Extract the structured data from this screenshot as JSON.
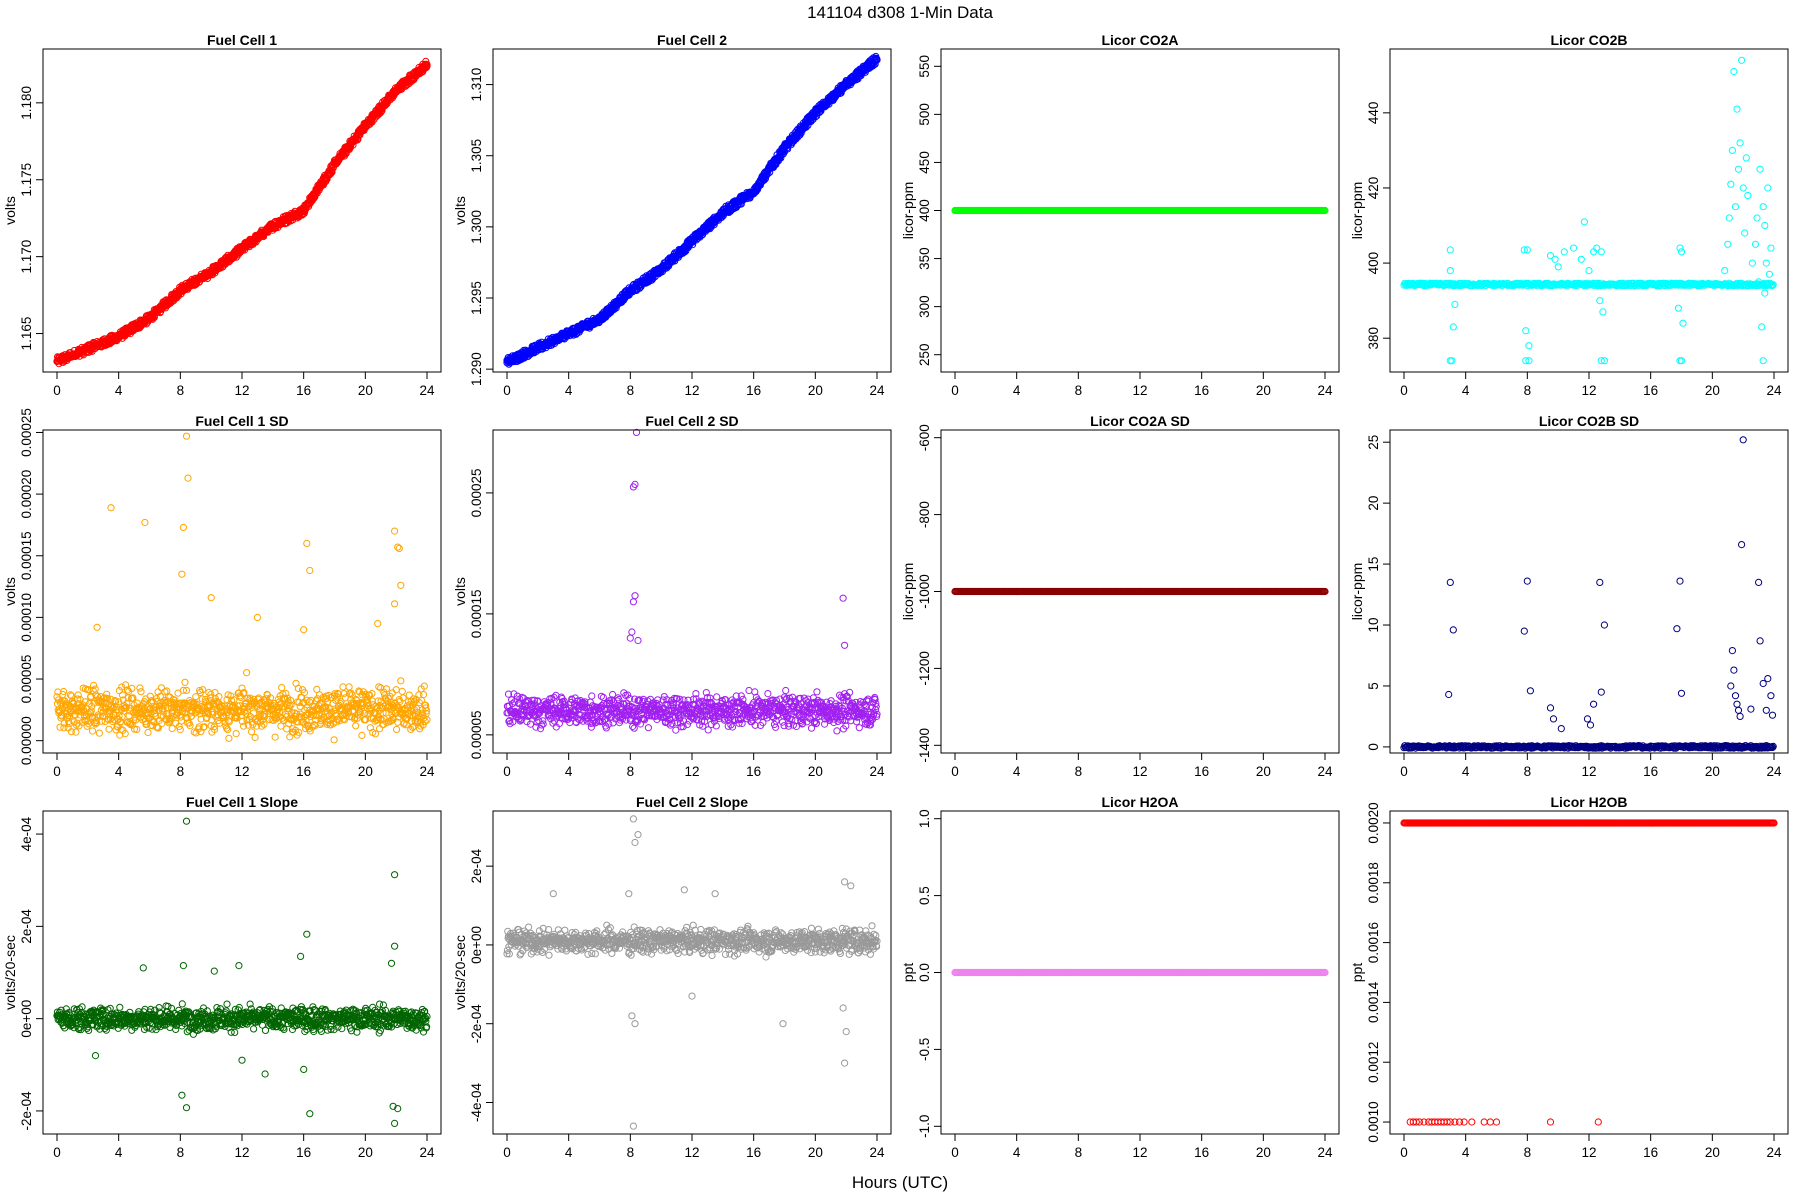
{
  "figure": {
    "title": "141104   d308   1-Min Data",
    "xlabel": "Hours (UTC)"
  },
  "chart_data": [
    {
      "type": "scatter",
      "title": "Fuel Cell 1",
      "ylabel": "volts",
      "color": "#ff0000",
      "xlim": [
        0,
        24
      ],
      "xticks": [
        "0",
        "4",
        "8",
        "12",
        "16",
        "20",
        "24"
      ],
      "ylim": [
        1.1625,
        1.1835
      ],
      "yticks": [
        [
          "1.165",
          1.165
        ],
        [
          "1.170",
          1.17
        ],
        [
          "1.175",
          1.175
        ],
        [
          "1.180",
          1.18
        ]
      ],
      "trend": [
        [
          0,
          1.1632
        ],
        [
          2,
          1.164
        ],
        [
          4,
          1.1648
        ],
        [
          6,
          1.166
        ],
        [
          8,
          1.1678
        ],
        [
          10,
          1.169
        ],
        [
          12,
          1.1705
        ],
        [
          14,
          1.172
        ],
        [
          16,
          1.173
        ],
        [
          18,
          1.176
        ],
        [
          20,
          1.1785
        ],
        [
          22,
          1.1808
        ],
        [
          24,
          1.1825
        ]
      ],
      "points": []
    },
    {
      "type": "scatter",
      "title": "Fuel Cell 2",
      "ylabel": "volts",
      "color": "#0000ff",
      "xlim": [
        0,
        24
      ],
      "xticks": [
        "0",
        "4",
        "8",
        "12",
        "16",
        "20",
        "24"
      ],
      "ylim": [
        1.2898,
        1.3125
      ],
      "yticks": [
        [
          "1.290",
          1.29
        ],
        [
          "1.295",
          1.295
        ],
        [
          "1.300",
          1.3
        ],
        [
          "1.305",
          1.305
        ],
        [
          "1.310",
          1.31
        ]
      ],
      "trend": [
        [
          0,
          1.2905
        ],
        [
          2,
          1.2915
        ],
        [
          4,
          1.2925
        ],
        [
          6,
          1.2935
        ],
        [
          8,
          1.2955
        ],
        [
          10,
          1.297
        ],
        [
          12,
          1.299
        ],
        [
          14,
          1.301
        ],
        [
          16,
          1.3025
        ],
        [
          18,
          1.3055
        ],
        [
          20,
          1.308
        ],
        [
          22,
          1.31
        ],
        [
          24,
          1.3118
        ]
      ],
      "points": []
    },
    {
      "type": "scatter",
      "title": "Licor CO2A",
      "ylabel": "licor-ppm",
      "color": "#00ff00",
      "xlim": [
        0,
        24
      ],
      "xticks": [
        "0",
        "4",
        "8",
        "12",
        "16",
        "20",
        "24"
      ],
      "ylim": [
        232,
        568
      ],
      "yticks": [
        [
          "250",
          250
        ],
        [
          "300",
          300
        ],
        [
          "350",
          350
        ],
        [
          "400",
          400
        ],
        [
          "450",
          450
        ],
        [
          "500",
          500
        ],
        [
          "550",
          550
        ]
      ],
      "constant": 400,
      "points": []
    },
    {
      "type": "scatter",
      "title": "Licor CO2B",
      "ylabel": "licor-ppm",
      "color": "#00ffff",
      "xlim": [
        0,
        24
      ],
      "xticks": [
        "0",
        "4",
        "8",
        "12",
        "16",
        "20",
        "24"
      ],
      "ylim": [
        371,
        457
      ],
      "yticks": [
        [
          "380",
          380
        ],
        [
          "400",
          400
        ],
        [
          "420",
          420
        ],
        [
          "440",
          440
        ]
      ],
      "baseline": 394.3,
      "points": [
        [
          3,
          403.5
        ],
        [
          3,
          398
        ],
        [
          3.3,
          389
        ],
        [
          3.2,
          383
        ],
        [
          3,
          374
        ],
        [
          3.1,
          374
        ],
        [
          7.8,
          403.5
        ],
        [
          8,
          403.5
        ],
        [
          7.9,
          382
        ],
        [
          8.1,
          378
        ],
        [
          7.9,
          374
        ],
        [
          8.1,
          374
        ],
        [
          9.5,
          402
        ],
        [
          9.8,
          401
        ],
        [
          10,
          399
        ],
        [
          10.4,
          403
        ],
        [
          11,
          404
        ],
        [
          11.5,
          401
        ],
        [
          12,
          398
        ],
        [
          11.7,
          411
        ],
        [
          12.3,
          403
        ],
        [
          12.5,
          404
        ],
        [
          12.8,
          403
        ],
        [
          12.7,
          390
        ],
        [
          12.9,
          387
        ],
        [
          12.8,
          374
        ],
        [
          13,
          374
        ],
        [
          17.9,
          404
        ],
        [
          18,
          403
        ],
        [
          17.8,
          388
        ],
        [
          18.1,
          384
        ],
        [
          17.9,
          374
        ],
        [
          18,
          374
        ],
        [
          20.8,
          398
        ],
        [
          21,
          405
        ],
        [
          21.1,
          412
        ],
        [
          21.2,
          421
        ],
        [
          21.3,
          430
        ],
        [
          21.4,
          451
        ],
        [
          21.6,
          441
        ],
        [
          21.8,
          432
        ],
        [
          22,
          420
        ],
        [
          22.2,
          428
        ],
        [
          21.9,
          454
        ],
        [
          22.3,
          418
        ],
        [
          22.6,
          400
        ],
        [
          22.8,
          405
        ],
        [
          23,
          395
        ],
        [
          23.1,
          425
        ],
        [
          23.3,
          415
        ],
        [
          23.4,
          410
        ],
        [
          23.5,
          400
        ],
        [
          23.6,
          420
        ],
        [
          23.7,
          397
        ],
        [
          23.2,
          383
        ],
        [
          23.3,
          374
        ],
        [
          23.4,
          392
        ],
        [
          21.7,
          425
        ],
        [
          21.5,
          415
        ],
        [
          22.1,
          408
        ],
        [
          22.9,
          412
        ],
        [
          23.8,
          404
        ]
      ]
    },
    {
      "type": "scatter",
      "title": "Fuel Cell 1 SD",
      "ylabel": "volts",
      "color": "#ffa500",
      "xlim": [
        0,
        24
      ],
      "xticks": [
        "0",
        "4",
        "8",
        "12",
        "16",
        "20",
        "24"
      ],
      "ylim": [
        -1e-05,
        0.000252
      ],
      "yticks": [
        [
          "0.00000",
          0
        ],
        [
          "0.00005",
          5e-05
        ],
        [
          "0.00010",
          0.0001
        ],
        [
          "0.00015",
          0.00015
        ],
        [
          "0.00020",
          0.0002
        ],
        [
          "0.00025",
          0.00025
        ]
      ],
      "noise": {
        "center": 2.5e-05,
        "spread": 2.2e-05
      },
      "points": [
        [
          8.4,
          0.000247
        ],
        [
          8.5,
          0.000213
        ],
        [
          3.5,
          0.000189
        ],
        [
          5.7,
          0.000177
        ],
        [
          8.2,
          0.000173
        ],
        [
          8.1,
          0.000135
        ],
        [
          10,
          0.000116
        ],
        [
          21.9,
          0.00017
        ],
        [
          22.1,
          0.000157
        ],
        [
          22.2,
          0.000156
        ],
        [
          16.2,
          0.00016
        ],
        [
          16.4,
          0.000138
        ],
        [
          22.3,
          0.000126
        ],
        [
          21.9,
          0.000111
        ],
        [
          13,
          0.0001
        ],
        [
          20.8,
          9.5e-05
        ],
        [
          2.6,
          9.2e-05
        ],
        [
          16,
          9e-05
        ]
      ]
    },
    {
      "type": "scatter",
      "title": "Fuel Cell 2 SD",
      "ylabel": "volts",
      "color": "#a020f0",
      "xlim": [
        0,
        24
      ],
      "xticks": [
        "0",
        "4",
        "8",
        "12",
        "16",
        "20",
        "24"
      ],
      "ylim": [
        3.5e-05,
        0.000302
      ],
      "yticks": [
        [
          "0.00005",
          5e-05
        ],
        [
          "0.00015",
          0.00015
        ],
        [
          "0.00025",
          0.00025
        ]
      ],
      "noise": {
        "center": 7e-05,
        "spread": 1.6e-05
      },
      "points": [
        [
          8.4,
          0.0003
        ],
        [
          8.3,
          0.000257
        ],
        [
          8.2,
          0.000255
        ],
        [
          8.3,
          0.000165
        ],
        [
          8.2,
          0.00016
        ],
        [
          8.1,
          0.000135
        ],
        [
          21.8,
          0.000163
        ],
        [
          8,
          0.00013
        ],
        [
          8.5,
          0.000128
        ],
        [
          21.9,
          0.000124
        ]
      ]
    },
    {
      "type": "scatter",
      "title": "Licor CO2A SD",
      "ylabel": "licor-ppm",
      "color": "#8b0000",
      "xlim": [
        0,
        24
      ],
      "xticks": [
        "0",
        "4",
        "8",
        "12",
        "16",
        "20",
        "24"
      ],
      "ylim": [
        -1420,
        -580
      ],
      "yticks": [
        [
          "-1400",
          -1400
        ],
        [
          "-1200",
          -1200
        ],
        [
          "-1000",
          -1000
        ],
        [
          "-800",
          -800
        ],
        [
          "-600",
          -600
        ]
      ],
      "constant": -1000,
      "points": []
    },
    {
      "type": "scatter",
      "title": "Licor CO2B SD",
      "ylabel": "licor-ppm",
      "color": "#000080",
      "xlim": [
        0,
        24
      ],
      "xticks": [
        "0",
        "4",
        "8",
        "12",
        "16",
        "20",
        "24"
      ],
      "ylim": [
        -0.5,
        26
      ],
      "yticks": [
        [
          "0",
          0
        ],
        [
          "5",
          5
        ],
        [
          "10",
          10
        ],
        [
          "15",
          15
        ],
        [
          "20",
          20
        ],
        [
          "25",
          25
        ]
      ],
      "baseline": 0,
      "points": [
        [
          22,
          25.2
        ],
        [
          21.9,
          16.6
        ],
        [
          3,
          13.5
        ],
        [
          8,
          13.6
        ],
        [
          12.7,
          13.5
        ],
        [
          17.9,
          13.6
        ],
        [
          23,
          13.5
        ],
        [
          3.2,
          9.6
        ],
        [
          7.8,
          9.5
        ],
        [
          13,
          10
        ],
        [
          17.7,
          9.7
        ],
        [
          23.1,
          8.7
        ],
        [
          2.9,
          4.3
        ],
        [
          8.2,
          4.6
        ],
        [
          12.8,
          4.5
        ],
        [
          18,
          4.4
        ],
        [
          9.5,
          3.2
        ],
        [
          12.3,
          3.5
        ],
        [
          21.3,
          7.9
        ],
        [
          21.4,
          6.3
        ],
        [
          21.2,
          5
        ],
        [
          21.5,
          4.2
        ],
        [
          21.6,
          3.5
        ],
        [
          21.7,
          3
        ],
        [
          21.8,
          2.5
        ],
        [
          22.5,
          3.1
        ],
        [
          23.3,
          5.2
        ],
        [
          23.6,
          5.6
        ],
        [
          23.8,
          4.2
        ],
        [
          23.5,
          3
        ],
        [
          23.9,
          2.6
        ],
        [
          11.9,
          2.3
        ],
        [
          12.1,
          1.8
        ],
        [
          10.2,
          1.5
        ],
        [
          9.7,
          2.3
        ]
      ]
    },
    {
      "type": "scatter",
      "title": "Fuel Cell 1 Slope",
      "ylabel": "volts/20-sec",
      "color": "#006400",
      "xlim": [
        0,
        24
      ],
      "xticks": [
        "0",
        "4",
        "8",
        "12",
        "16",
        "20",
        "24"
      ],
      "ylim": [
        -0.00025,
        0.00045
      ],
      "yticks": [
        [
          "-2e-04",
          -0.0002
        ],
        [
          "0e+00",
          0
        ],
        [
          "2e-04",
          0.0002
        ],
        [
          "4e-04",
          0.0004
        ]
      ],
      "noise": {
        "center": 0,
        "spread": 3.2e-05
      },
      "points": [
        [
          8.4,
          0.000428
        ],
        [
          21.9,
          0.000312
        ],
        [
          16.2,
          0.000183
        ],
        [
          8.1,
          -0.000166
        ],
        [
          8.4,
          -0.000193
        ],
        [
          16.4,
          -0.000206
        ],
        [
          21.9,
          -0.000227
        ],
        [
          21.8,
          -0.00019
        ],
        [
          22.1,
          -0.000195
        ],
        [
          5.6,
          0.00011
        ],
        [
          8.2,
          0.000115
        ],
        [
          10.2,
          0.000103
        ],
        [
          11.8,
          0.000115
        ],
        [
          15.8,
          0.000135
        ],
        [
          21.9,
          0.000157
        ],
        [
          21.7,
          0.00012
        ],
        [
          16,
          -0.00011
        ],
        [
          12,
          -9e-05
        ],
        [
          13.5,
          -0.00012
        ],
        [
          2.5,
          -8e-05
        ]
      ]
    },
    {
      "type": "scatter",
      "title": "Fuel Cell 2 Slope",
      "ylabel": "volts/20-sec",
      "color": "#999999",
      "xlim": [
        0,
        24
      ],
      "xticks": [
        "0",
        "4",
        "8",
        "12",
        "16",
        "20",
        "24"
      ],
      "ylim": [
        -0.00048,
        0.00034
      ],
      "yticks": [
        [
          "-4e-04",
          -0.0004
        ],
        [
          "-2e-04",
          -0.0002
        ],
        [
          "0e+00",
          0
        ],
        [
          "2e-04",
          0.0002
        ]
      ],
      "noise": {
        "center": 1e-05,
        "spread": 3.8e-05
      },
      "points": [
        [
          8.2,
          0.00032
        ],
        [
          8.5,
          0.00028
        ],
        [
          8.3,
          0.00026
        ],
        [
          8.2,
          -0.00046
        ],
        [
          8.3,
          -0.0002
        ],
        [
          8.1,
          -0.00018
        ],
        [
          21.9,
          -0.0003
        ],
        [
          22,
          -0.00022
        ],
        [
          21.8,
          -0.00016
        ],
        [
          17.9,
          -0.0002
        ],
        [
          3,
          0.00013
        ],
        [
          11.5,
          0.00014
        ],
        [
          13.5,
          0.00013
        ],
        [
          21.9,
          0.00016
        ],
        [
          22.3,
          0.00015
        ],
        [
          7.9,
          0.00013
        ],
        [
          12,
          -0.00013
        ]
      ]
    },
    {
      "type": "scatter",
      "title": "Licor H2OA",
      "ylabel": "ppt",
      "color": "#ee82ee",
      "xlim": [
        0,
        24
      ],
      "xticks": [
        "0",
        "4",
        "8",
        "12",
        "16",
        "20",
        "24"
      ],
      "ylim": [
        -1.05,
        1.05
      ],
      "yticks": [
        [
          "-1.0",
          -1
        ],
        [
          "-0.5",
          -0.5
        ],
        [
          "0.0",
          0
        ],
        [
          "0.5",
          0.5
        ],
        [
          "1.0",
          1
        ]
      ],
      "constant": 0,
      "points": []
    },
    {
      "type": "scatter",
      "title": "Licor H2OB",
      "ylabel": "ppt",
      "color": "#ff0000",
      "xlim": [
        0,
        24
      ],
      "xticks": [
        "0",
        "4",
        "8",
        "12",
        "16",
        "20",
        "24"
      ],
      "ylim": [
        0.00096,
        0.00204
      ],
      "yticks": [
        [
          "0.0010",
          0.001
        ],
        [
          "0.0012",
          0.0012
        ],
        [
          "0.0014",
          0.0014
        ],
        [
          "0.0016",
          0.0016
        ],
        [
          "0.0018",
          0.0018
        ],
        [
          "0.0020",
          0.002
        ]
      ],
      "constant": 0.002,
      "points": [
        [
          0.4,
          0.001
        ],
        [
          0.6,
          0.001
        ],
        [
          0.8,
          0.001
        ],
        [
          1.0,
          0.001
        ],
        [
          1.3,
          0.001
        ],
        [
          1.6,
          0.001
        ],
        [
          1.8,
          0.001
        ],
        [
          2.0,
          0.001
        ],
        [
          2.2,
          0.001
        ],
        [
          2.4,
          0.001
        ],
        [
          2.6,
          0.001
        ],
        [
          2.8,
          0.001
        ],
        [
          3.0,
          0.001
        ],
        [
          3.3,
          0.001
        ],
        [
          3.6,
          0.001
        ],
        [
          3.9,
          0.001
        ],
        [
          4.4,
          0.001
        ],
        [
          5.2,
          0.001
        ],
        [
          5.6,
          0.001
        ],
        [
          6.0,
          0.001
        ],
        [
          9.5,
          0.001
        ],
        [
          12.6,
          0.001
        ]
      ]
    }
  ]
}
